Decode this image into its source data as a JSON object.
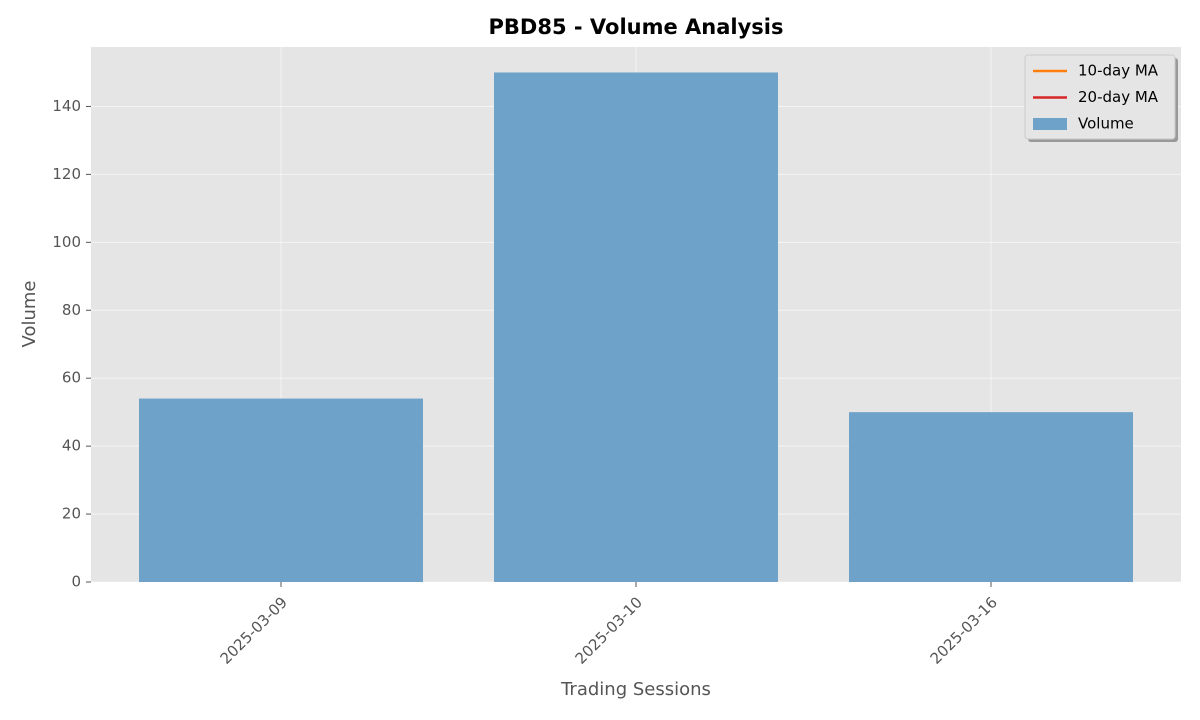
{
  "chart_data": {
    "type": "bar",
    "title": "PBD85 - Volume Analysis",
    "xlabel": "Trading Sessions",
    "ylabel": "Volume",
    "categories": [
      "2025-03-09",
      "2025-03-10",
      "2025-03-16"
    ],
    "series": [
      {
        "name": "10-day MA",
        "color": "#ff7f0e",
        "type": "line",
        "values": [
          null,
          null,
          null
        ]
      },
      {
        "name": "20-day MA",
        "color": "#d62728",
        "type": "line",
        "values": [
          null,
          null,
          null
        ]
      },
      {
        "name": "Volume",
        "color": "#6ea2c8",
        "type": "bar",
        "values": [
          54,
          150,
          50
        ]
      }
    ],
    "ylim": [
      0,
      157.5
    ],
    "yticks": [
      0,
      20,
      40,
      60,
      80,
      100,
      120,
      140
    ],
    "grid": true,
    "legend": "upper right"
  }
}
